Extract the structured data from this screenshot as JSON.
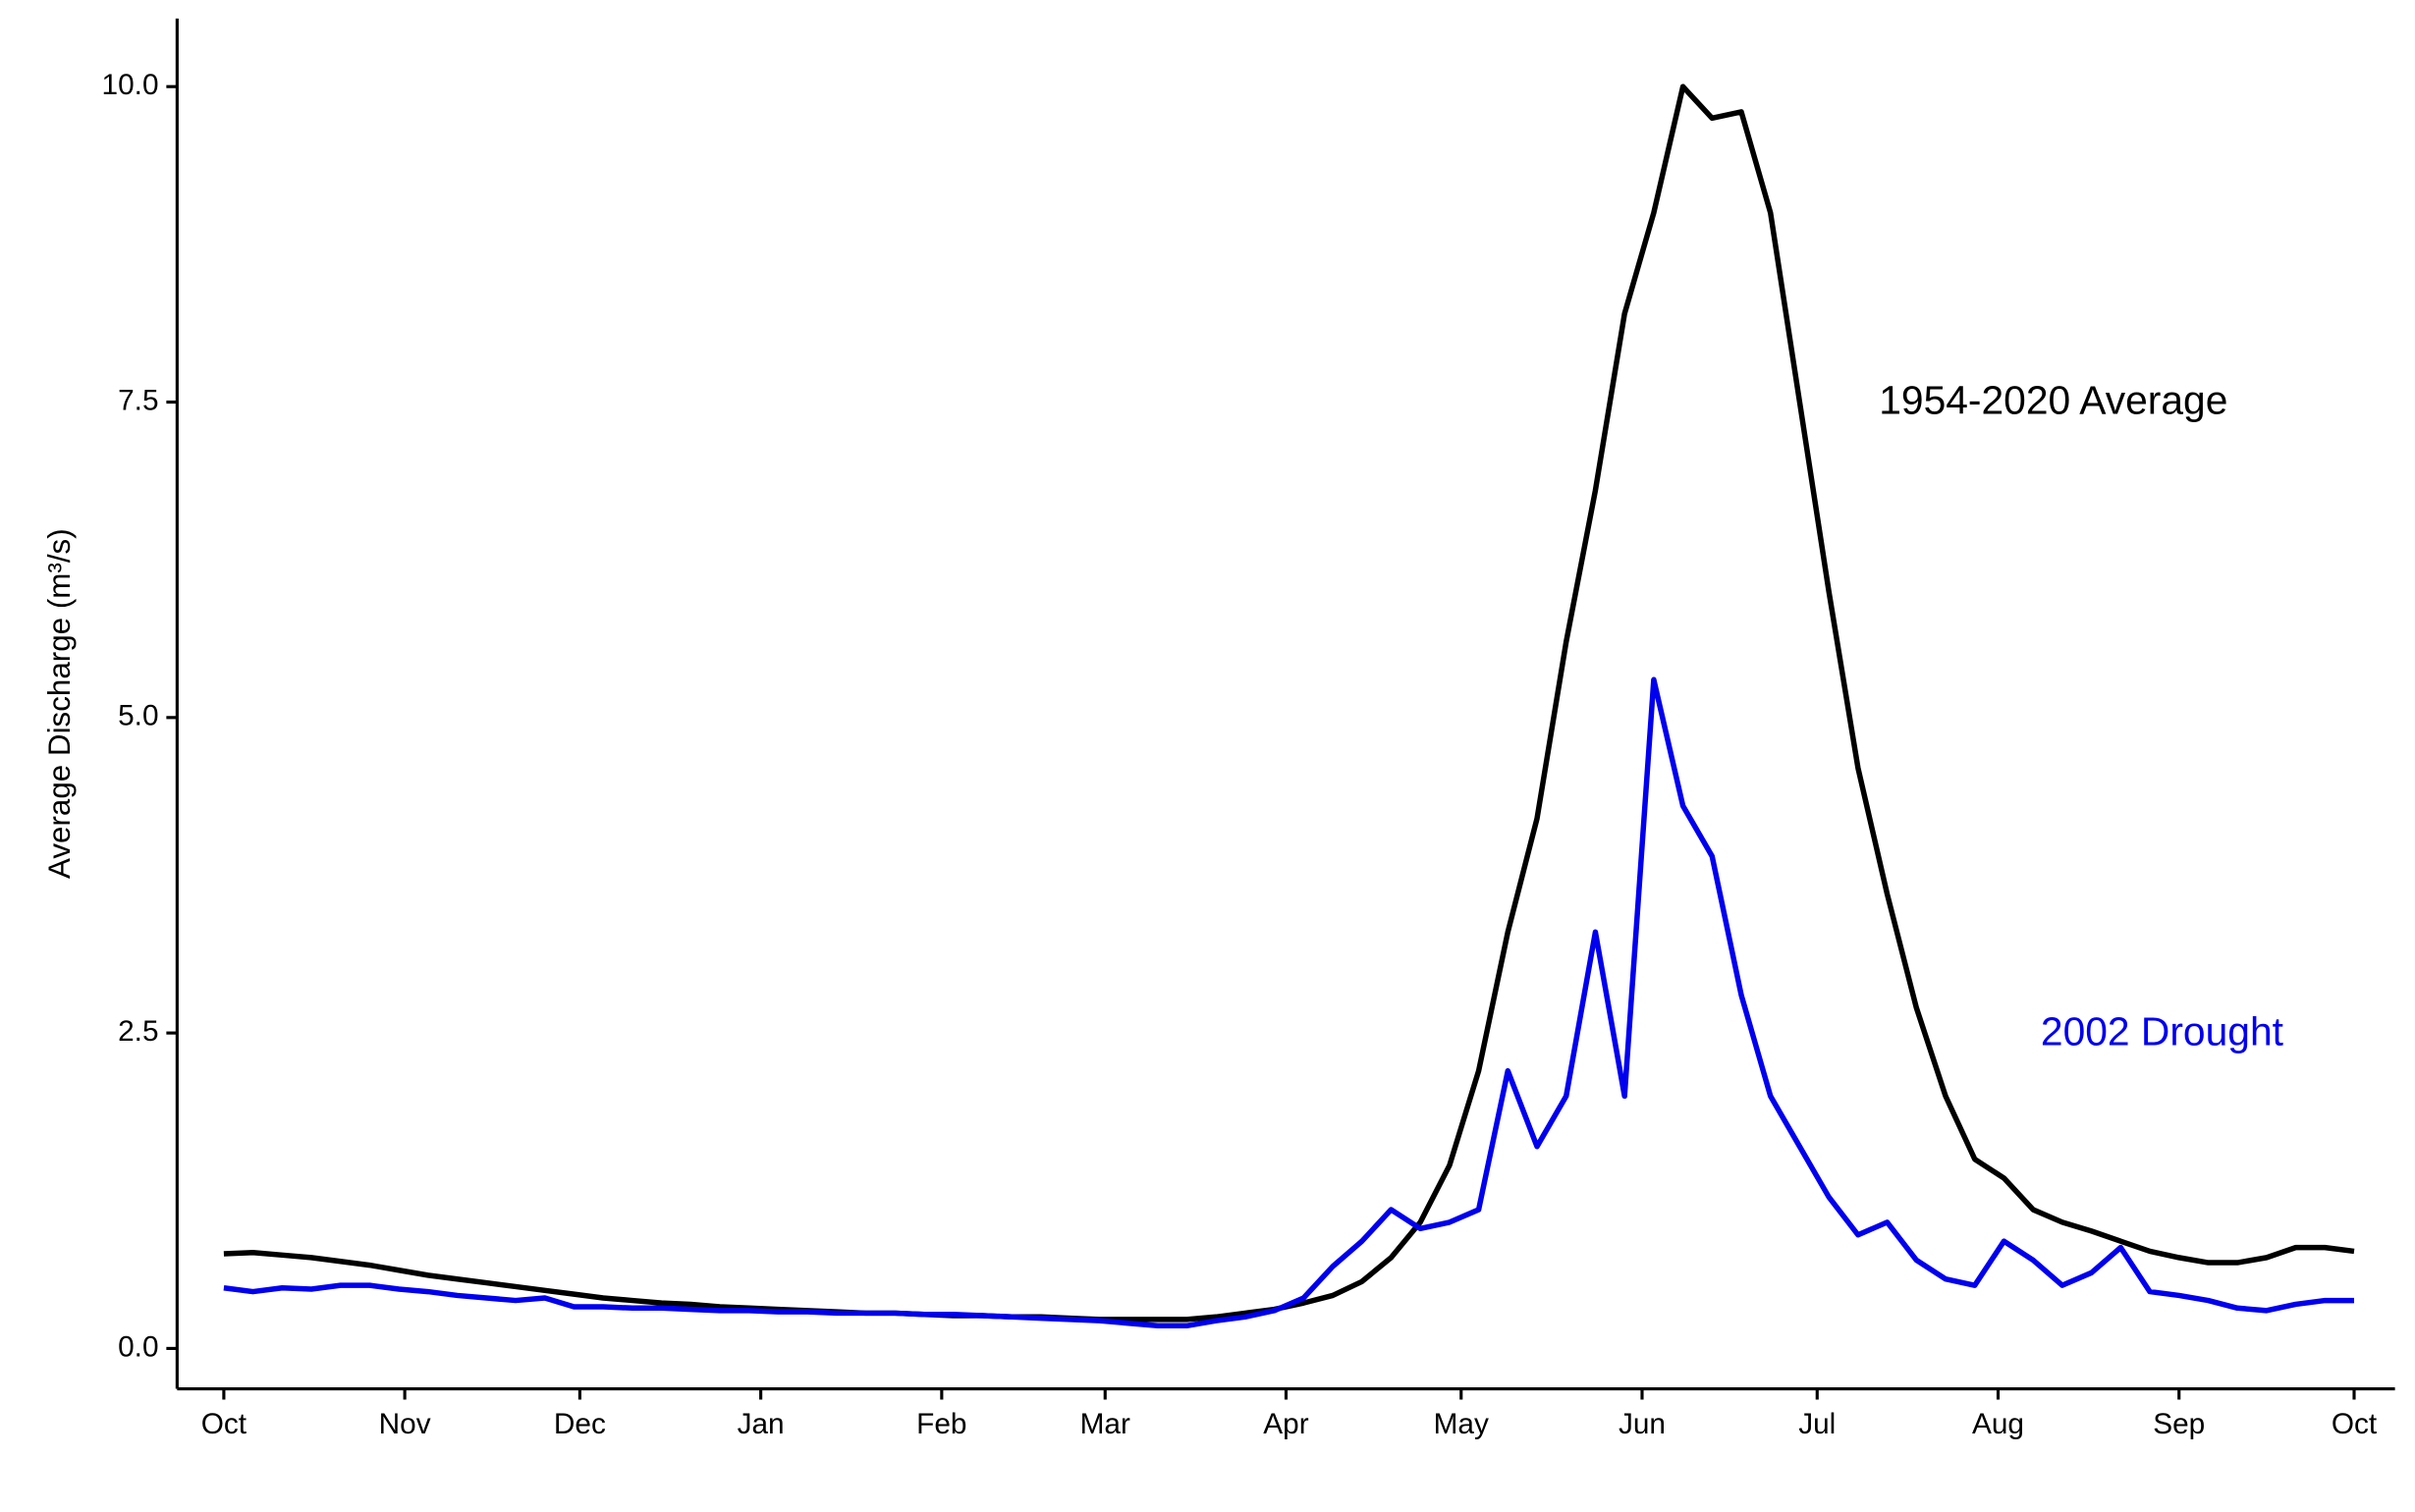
{
  "chart_data": {
    "type": "line",
    "y_label": "Average Discharge (m³/s)",
    "annotations": [
      "1954-2020 Average",
      "2002 Drought"
    ],
    "x": [
      0,
      5,
      10,
      15,
      20,
      25,
      30,
      35,
      40,
      45,
      50,
      55,
      60,
      65,
      70,
      75,
      80,
      85,
      90,
      95,
      100,
      105,
      110,
      115,
      120,
      125,
      130,
      135,
      140,
      145,
      150,
      155,
      160,
      165,
      170,
      175,
      180,
      185,
      190,
      195,
      200,
      205,
      210,
      215,
      220,
      225,
      230,
      235,
      240,
      245,
      250,
      255,
      260,
      265,
      270,
      275,
      280,
      285,
      290,
      295,
      300,
      305,
      310,
      315,
      320,
      325,
      330,
      335,
      340,
      345,
      350,
      355,
      360,
      365
    ],
    "series": [
      {
        "name": "1954-2020 Average",
        "color": "#000000",
        "values": [
          0.75,
          0.76,
          0.74,
          0.72,
          0.69,
          0.66,
          0.62,
          0.58,
          0.55,
          0.52,
          0.49,
          0.46,
          0.43,
          0.4,
          0.38,
          0.36,
          0.35,
          0.33,
          0.32,
          0.31,
          0.3,
          0.29,
          0.28,
          0.28,
          0.27,
          0.26,
          0.26,
          0.25,
          0.25,
          0.24,
          0.23,
          0.23,
          0.23,
          0.23,
          0.25,
          0.28,
          0.31,
          0.36,
          0.42,
          0.53,
          0.72,
          1.0,
          1.45,
          2.2,
          3.3,
          4.2,
          5.6,
          6.8,
          8.2,
          9.0,
          10.0,
          9.75,
          9.8,
          9.0,
          7.5,
          6.0,
          4.6,
          3.6,
          2.7,
          2.0,
          1.5,
          1.35,
          1.1,
          1.0,
          0.93,
          0.85,
          0.77,
          0.72,
          0.68,
          0.68,
          0.72,
          0.8,
          0.8,
          0.77
        ]
      },
      {
        "name": "2002 Drought",
        "color": "#0000ee",
        "values": [
          0.48,
          0.45,
          0.48,
          0.47,
          0.5,
          0.5,
          0.47,
          0.45,
          0.42,
          0.4,
          0.38,
          0.4,
          0.33,
          0.33,
          0.32,
          0.32,
          0.31,
          0.3,
          0.3,
          0.29,
          0.29,
          0.28,
          0.28,
          0.28,
          0.27,
          0.27,
          0.26,
          0.25,
          0.24,
          0.23,
          0.22,
          0.2,
          0.18,
          0.18,
          0.22,
          0.25,
          0.3,
          0.4,
          0.65,
          0.85,
          1.1,
          0.95,
          1.0,
          1.1,
          2.2,
          1.6,
          2.0,
          3.3,
          2.0,
          5.3,
          4.3,
          3.9,
          2.8,
          2.0,
          1.6,
          1.2,
          0.9,
          1.0,
          0.7,
          0.55,
          0.5,
          0.85,
          0.7,
          0.5,
          0.6,
          0.8,
          0.45,
          0.42,
          0.38,
          0.32,
          0.3,
          0.35,
          0.38,
          0.38
        ]
      }
    ],
    "xlim": [
      -8,
      372
    ],
    "xticks": [
      {
        "value": 0,
        "label": "Oct"
      },
      {
        "value": 31,
        "label": "Nov"
      },
      {
        "value": 61,
        "label": "Dec"
      },
      {
        "value": 92,
        "label": "Jan"
      },
      {
        "value": 123,
        "label": "Feb"
      },
      {
        "value": 151,
        "label": "Mar"
      },
      {
        "value": 182,
        "label": "Apr"
      },
      {
        "value": 212,
        "label": "May"
      },
      {
        "value": 243,
        "label": "Jun"
      },
      {
        "value": 273,
        "label": "Jul"
      },
      {
        "value": 304,
        "label": "Aug"
      },
      {
        "value": 335,
        "label": "Sep"
      },
      {
        "value": 365,
        "label": "Oct"
      }
    ],
    "ylim": [
      -0.32,
      10.54
    ],
    "yticks": [
      {
        "value": 0,
        "label": "0.0"
      },
      2.5,
      {
        "value": 5,
        "label": "5.0"
      },
      7.5,
      {
        "value": 10,
        "label": "10.0"
      }
    ],
    "grid": false
  }
}
